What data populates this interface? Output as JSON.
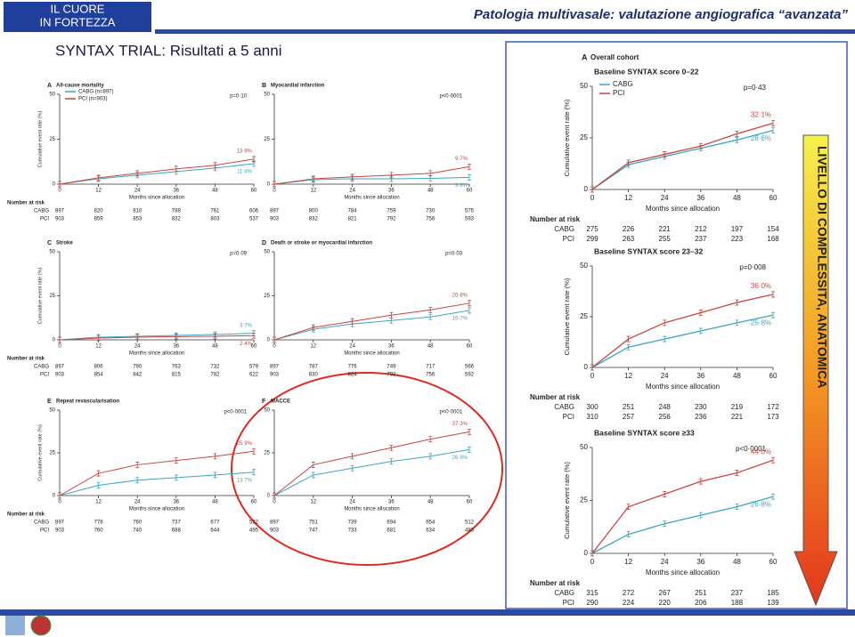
{
  "header": {
    "logo": [
      "IL CUORE",
      "IN FORTEZZA"
    ],
    "title": "Patologia multivasale: valutazione angiografica “avanzata”"
  },
  "slide_title": "SYNTAX TRIAL: Risultati a 5 anni",
  "side_label": "LIVELLO DI COMPLESSITA, ANATOMICA",
  "chart_data": [
    {
      "type": "line",
      "panel": "A",
      "title": "All-cause mortality",
      "p_value": "p=0·10",
      "y_label": "Cumulative event rate (%)",
      "x_label": "Months since allocation",
      "x": [
        0,
        12,
        24,
        36,
        48,
        60
      ],
      "xlim": [
        0,
        60
      ],
      "xticks": [
        0,
        12,
        24,
        36,
        48,
        60
      ],
      "ylim": [
        0,
        50
      ],
      "yticks": [
        0,
        25,
        50
      ],
      "series": [
        {
          "name": "CABG (n=897)",
          "color": "#3aa6c4",
          "values": [
            0,
            3,
            5,
            7,
            9,
            11.4
          ],
          "value_labels": [
            null,
            null,
            null,
            null,
            null,
            "11·4%"
          ]
        },
        {
          "name": "PCI (n=903)",
          "color": "#c8453f",
          "values": [
            0,
            3.5,
            6,
            8.5,
            10.5,
            13.9
          ],
          "value_labels": [
            null,
            null,
            null,
            null,
            null,
            "13·9%"
          ]
        }
      ],
      "risk": {
        "label": "Number at risk",
        "rows": [
          {
            "name": "CABG",
            "values": [
              897,
              820,
              810,
              788,
              761,
              606
            ]
          },
          {
            "name": "PCI",
            "values": [
              903,
              859,
              853,
              832,
              803,
              537
            ]
          }
        ]
      }
    },
    {
      "type": "line",
      "panel": "B",
      "title": "Myocardial infarction",
      "p_value": "p<0·0001",
      "x_label": "Months since allocation",
      "x": [
        0,
        12,
        24,
        36,
        48,
        60
      ],
      "xlim": [
        0,
        60
      ],
      "xticks": [
        0,
        12,
        24,
        36,
        48,
        60
      ],
      "ylim": [
        0,
        50
      ],
      "yticks": [
        0,
        25,
        50
      ],
      "series": [
        {
          "color": "#3aa6c4",
          "values": [
            0,
            2.5,
            3,
            3,
            3.2,
            3.8
          ],
          "value_labels": [
            null,
            null,
            null,
            null,
            null,
            "3·8%"
          ]
        },
        {
          "color": "#c8453f",
          "values": [
            0,
            3,
            4,
            5,
            6,
            9.7
          ],
          "value_labels": [
            null,
            null,
            null,
            null,
            null,
            "9·7%"
          ]
        }
      ],
      "risk": {
        "rows": [
          {
            "values": [
              897,
              800,
              784,
              759,
              730,
              575
            ]
          },
          {
            "values": [
              903,
              832,
              821,
              792,
              756,
              593
            ]
          }
        ]
      }
    },
    {
      "type": "line",
      "panel": "C",
      "title": "Stroke",
      "p_value": "p=0·09",
      "y_label": "Cumulative event rate (%)",
      "x_label": "Months since allocation",
      "x": [
        0,
        12,
        24,
        36,
        48,
        60
      ],
      "xlim": [
        0,
        60
      ],
      "xticks": [
        0,
        12,
        24,
        36,
        48,
        60
      ],
      "ylim": [
        0,
        50
      ],
      "yticks": [
        0,
        25,
        50
      ],
      "series": [
        {
          "color": "#3aa6c4",
          "values": [
            0,
            1.5,
            2,
            2.5,
            3,
            3.7
          ],
          "value_labels": [
            null,
            null,
            null,
            null,
            null,
            "3·7%"
          ]
        },
        {
          "color": "#c8453f",
          "values": [
            0,
            1,
            1.5,
            1.8,
            2,
            2.4
          ],
          "value_labels": [
            null,
            null,
            null,
            null,
            null,
            "2·4%"
          ]
        }
      ],
      "risk": {
        "label": "Number at risk",
        "rows": [
          {
            "name": "CABG",
            "values": [
              897,
              806,
              790,
              763,
              732,
              579
            ]
          },
          {
            "name": "PCI",
            "values": [
              903,
              854,
              842,
              815,
              782,
              622
            ]
          }
        ]
      }
    },
    {
      "type": "line",
      "panel": "D",
      "title": "Death or stroke or myocardial infarction",
      "p_value": "p=0·03",
      "x_label": "Months since allocation",
      "x": [
        0,
        12,
        24,
        36,
        48,
        60
      ],
      "xlim": [
        0,
        60
      ],
      "xticks": [
        0,
        12,
        24,
        36,
        48,
        60
      ],
      "ylim": [
        0,
        50
      ],
      "yticks": [
        0,
        25,
        50
      ],
      "series": [
        {
          "color": "#3aa6c4",
          "values": [
            0,
            6,
            9,
            11,
            13,
            16.7
          ],
          "value_labels": [
            null,
            null,
            null,
            null,
            null,
            "16·7%"
          ]
        },
        {
          "color": "#c8453f",
          "values": [
            0,
            7,
            10.5,
            14,
            17,
            20.8
          ],
          "value_labels": [
            null,
            null,
            null,
            null,
            null,
            "20·8%"
          ]
        }
      ],
      "risk": {
        "rows": [
          {
            "values": [
              897,
              787,
              776,
              749,
              717,
              566
            ]
          },
          {
            "values": [
              903,
              830,
              824,
              792,
              756,
              592
            ]
          }
        ]
      }
    },
    {
      "type": "line",
      "panel": "E",
      "title": "Repeat revascularisation",
      "p_value": "p<0·0001",
      "y_label": "Cumulative event rate (%)",
      "x_label": "Months since allocation",
      "x": [
        0,
        12,
        24,
        36,
        48,
        60
      ],
      "xlim": [
        0,
        60
      ],
      "xticks": [
        0,
        12,
        24,
        36,
        48,
        60
      ],
      "ylim": [
        0,
        50
      ],
      "yticks": [
        0,
        25,
        50
      ],
      "series": [
        {
          "color": "#3aa6c4",
          "values": [
            0,
            6,
            9,
            10.5,
            12,
            13.7
          ],
          "value_labels": [
            null,
            null,
            null,
            null,
            null,
            "13·7%"
          ]
        },
        {
          "color": "#c8453f",
          "values": [
            0,
            13,
            18,
            20.5,
            23,
            25.9
          ],
          "value_labels": [
            null,
            null,
            null,
            null,
            null,
            "25·9%"
          ]
        }
      ],
      "risk": {
        "label": "Number at risk",
        "rows": [
          {
            "name": "CABG",
            "values": [
              897,
              778,
              760,
              737,
              677,
              532
            ]
          },
          {
            "name": "PCI",
            "values": [
              903,
              760,
              740,
              688,
              644,
              495
            ]
          }
        ]
      }
    },
    {
      "type": "line",
      "panel": "F",
      "title": "MACCE",
      "p_value": "p<0·0001",
      "x_label": "Months since allocation",
      "x": [
        0,
        12,
        24,
        36,
        48,
        60
      ],
      "xlim": [
        0,
        60
      ],
      "xticks": [
        0,
        12,
        24,
        36,
        48,
        60
      ],
      "ylim": [
        0,
        50
      ],
      "yticks": [
        0,
        25,
        50
      ],
      "series": [
        {
          "color": "#3aa6c4",
          "values": [
            0,
            12,
            16,
            20,
            23,
            26.9
          ],
          "value_labels": [
            null,
            null,
            null,
            null,
            null,
            "26·9%"
          ]
        },
        {
          "color": "#c8453f",
          "values": [
            0,
            18,
            23,
            28,
            33,
            37.3
          ],
          "value_labels": [
            null,
            null,
            null,
            null,
            null,
            "37·3%"
          ]
        }
      ],
      "risk": {
        "rows": [
          {
            "values": [
              897,
              751,
              739,
              694,
              654,
              512
            ]
          },
          {
            "values": [
              903,
              747,
              733,
              681,
              634,
              483
            ]
          }
        ]
      }
    },
    {
      "type": "line",
      "panel": "A",
      "title": "Overall cohort",
      "subtitle": "Baseline SYNTAX score 0–22",
      "p_value": "p=0·43",
      "y_label": "Cumulative event rate (%)",
      "x_label": "Months since allocation",
      "x": [
        0,
        12,
        24,
        36,
        48,
        60
      ],
      "xlim": [
        0,
        60
      ],
      "xticks": [
        0,
        12,
        24,
        36,
        48,
        60
      ],
      "ylim": [
        0,
        50
      ],
      "yticks": [
        0,
        25,
        50
      ],
      "series": [
        {
          "name": "CABG",
          "color": "#3aa6c4",
          "values": [
            0,
            12,
            16,
            20,
            24,
            28.6
          ],
          "value_labels": [
            null,
            null,
            null,
            null,
            null,
            "28·6%"
          ]
        },
        {
          "name": "PCI",
          "color": "#c8453f",
          "values": [
            0,
            13,
            17,
            21,
            27,
            32.1
          ],
          "value_labels": [
            null,
            null,
            null,
            null,
            null,
            "32·1%"
          ]
        }
      ],
      "risk": {
        "label": "Number at risk",
        "rows": [
          {
            "name": "CABG",
            "values": [
              275,
              226,
              221,
              212,
              197,
              154
            ]
          },
          {
            "name": "PCI",
            "values": [
              299,
              263,
              255,
              237,
              223,
              168
            ]
          }
        ]
      }
    },
    {
      "type": "line",
      "subtitle": "Baseline SYNTAX score 23–32",
      "p_value": "p=0·008",
      "y_label": "Cumulative event rate (%)",
      "x_label": "Months since allocation",
      "x": [
        0,
        12,
        24,
        36,
        48,
        60
      ],
      "xlim": [
        0,
        60
      ],
      "xticks": [
        0,
        12,
        24,
        36,
        48,
        60
      ],
      "ylim": [
        0,
        50
      ],
      "yticks": [
        0,
        25,
        50
      ],
      "series": [
        {
          "color": "#3aa6c4",
          "values": [
            0,
            10,
            14,
            18,
            22,
            25.8
          ],
          "value_labels": [
            null,
            null,
            null,
            null,
            null,
            "25·8%"
          ]
        },
        {
          "color": "#c8453f",
          "values": [
            0,
            14,
            22,
            27,
            32,
            36.0
          ],
          "value_labels": [
            null,
            null,
            null,
            null,
            null,
            "36·0%"
          ]
        }
      ],
      "risk": {
        "label": "Number at risk",
        "rows": [
          {
            "name": "CABG",
            "values": [
              300,
              251,
              248,
              230,
              219,
              172
            ]
          },
          {
            "name": "PCI",
            "values": [
              310,
              257,
              256,
              236,
              221,
              173
            ]
          }
        ]
      }
    },
    {
      "type": "line",
      "subtitle": "Baseline SYNTAX score ≥33",
      "p_value": "p<0·0001",
      "y_label": "Cumulative event rate (%)",
      "x_label": "Months since allocation",
      "x": [
        0,
        12,
        24,
        36,
        48,
        60
      ],
      "xlim": [
        0,
        60
      ],
      "xticks": [
        0,
        12,
        24,
        36,
        48,
        60
      ],
      "ylim": [
        0,
        50
      ],
      "yticks": [
        0,
        25,
        50
      ],
      "series": [
        {
          "color": "#3aa6c4",
          "values": [
            0,
            9,
            14,
            18,
            22,
            26.8
          ],
          "value_labels": [
            null,
            null,
            null,
            null,
            null,
            "26·8%"
          ]
        },
        {
          "color": "#c8453f",
          "values": [
            0,
            22,
            28,
            34,
            38,
            44.0
          ],
          "value_labels": [
            null,
            null,
            null,
            null,
            null,
            "44·0%"
          ]
        }
      ],
      "risk": {
        "label": "Number at risk",
        "rows": [
          {
            "name": "CABG",
            "values": [
              315,
              272,
              267,
              251,
              237,
              185
            ]
          },
          {
            "name": "PCI",
            "values": [
              290,
              224,
              220,
              206,
              188,
              139
            ]
          }
        ]
      }
    }
  ]
}
